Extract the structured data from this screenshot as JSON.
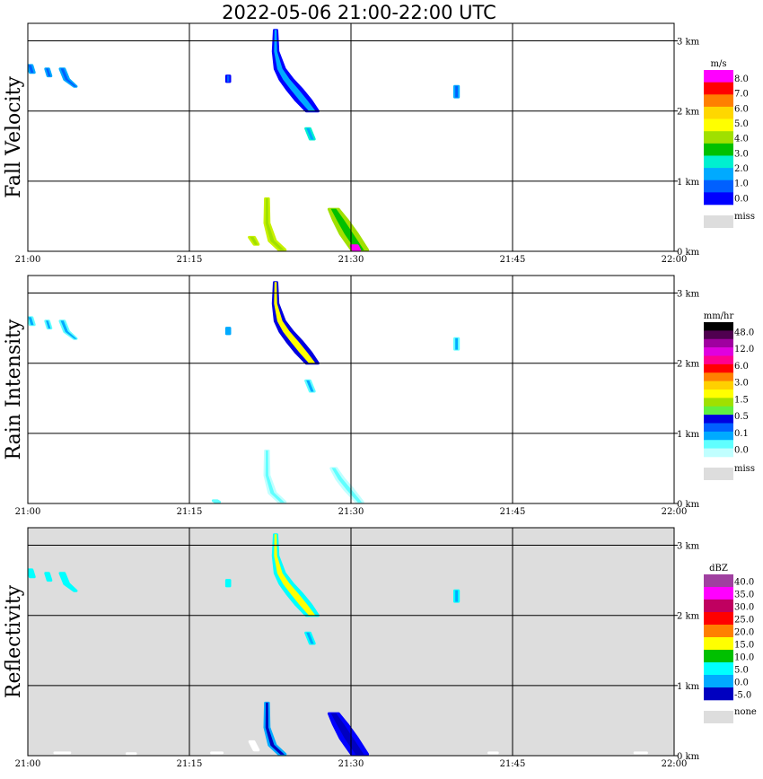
{
  "title": "2022-05-06  21:00-22:00 UTC",
  "chart_data": [
    {
      "type": "heatmap",
      "ylabel": "Fall Velocity",
      "x_ticks": [
        "21:00",
        "21:15",
        "21:30",
        "21:45",
        "22:00"
      ],
      "y_ticks": [
        "0 km",
        "1 km",
        "2 km",
        "3 km"
      ],
      "xlim": [
        0,
        60
      ],
      "ylim": [
        0,
        3.25
      ],
      "background": "#ffffff",
      "legend": {
        "unit": "m/s",
        "labels": [
          "8.0",
          "7.0",
          "6.0",
          "5.0",
          "4.0",
          "3.0",
          "2.0",
          "1.0",
          "0.0"
        ],
        "colors": [
          "#ff00ff",
          "#ff0000",
          "#ff7f00",
          "#ffd700",
          "#ffff00",
          "#a0e000",
          "#00c000",
          "#00f0d0",
          "#00aaff",
          "#0060ff",
          "#0000ff"
        ],
        "miss_label": "miss"
      },
      "echoes": [
        {
          "name": "upper-streak",
          "t": [
            23.0,
            23.0,
            23.4,
            24.0,
            24.8,
            25.6,
            26.4
          ],
          "h": [
            3.15,
            2.85,
            2.6,
            2.45,
            2.3,
            2.15,
            2.0
          ],
          "w": [
            0.25,
            0.45,
            0.9,
            1.2,
            1.4,
            1.4,
            1.1
          ],
          "core": "#00aaff",
          "edge": "#0000ff"
        },
        {
          "name": "upper-fragment",
          "t": [
            26.0,
            26.4
          ],
          "h": [
            1.75,
            1.6
          ],
          "w": [
            0.4,
            0.4
          ],
          "core": "#00aaff",
          "edge": "#00f0d0"
        },
        {
          "name": "left-specks",
          "t": [
            0.2,
            0.4
          ],
          "h": [
            2.65,
            2.55
          ],
          "w": [
            0.4,
            0.4
          ],
          "core": "#0060ff",
          "edge": "#00aaff"
        },
        {
          "name": "left-specks-2",
          "t": [
            1.8,
            2.0
          ],
          "h": [
            2.6,
            2.5
          ],
          "w": [
            0.3,
            0.3
          ],
          "core": "#0060ff",
          "edge": "#00aaff"
        },
        {
          "name": "left-specks-3",
          "t": [
            3.2,
            3.6,
            4.4
          ],
          "h": [
            2.6,
            2.45,
            2.35
          ],
          "w": [
            0.4,
            0.4,
            0.2
          ],
          "core": "#0060ff",
          "edge": "#00aaff"
        },
        {
          "name": "mid-speck",
          "t": [
            18.6,
            18.6
          ],
          "h": [
            2.5,
            2.42
          ],
          "w": [
            0.3,
            0.3
          ],
          "core": "#0060ff",
          "edge": "#0000ff"
        },
        {
          "name": "right-speck",
          "t": [
            39.8,
            39.8
          ],
          "h": [
            2.35,
            2.2
          ],
          "w": [
            0.35,
            0.35
          ],
          "core": "#0060ff",
          "edge": "#00aaff"
        },
        {
          "name": "lower-streak-a",
          "t": [
            22.2,
            22.2,
            22.7,
            23.6
          ],
          "h": [
            0.75,
            0.4,
            0.15,
            0.02
          ],
          "w": [
            0.3,
            0.4,
            0.6,
            0.6
          ],
          "core": "#a0e000",
          "edge": "#c8f000"
        },
        {
          "name": "lower-streak-a2",
          "t": [
            20.8,
            21.2
          ],
          "h": [
            0.2,
            0.1
          ],
          "w": [
            0.5,
            0.4
          ],
          "core": "#a0e000",
          "edge": "#c8f000"
        },
        {
          "name": "lower-streak-b",
          "t": [
            28.4,
            29.0,
            29.8,
            30.8
          ],
          "h": [
            0.6,
            0.45,
            0.25,
            0.02
          ],
          "w": [
            0.9,
            1.3,
            1.6,
            1.5
          ],
          "core": "#00c000",
          "edge": "#a0e000"
        },
        {
          "name": "lower-streak-b2",
          "t": [
            30.3,
            30.5
          ],
          "h": [
            0.08,
            0.02
          ],
          "w": [
            0.6,
            0.6
          ],
          "core": "#ff00ff",
          "edge": "#ff00ff"
        }
      ]
    },
    {
      "type": "heatmap",
      "ylabel": "Rain Intensity",
      "x_ticks": [
        "21:00",
        "21:15",
        "21:30",
        "21:45",
        "22:00"
      ],
      "y_ticks": [
        "0 km",
        "1 km",
        "2 km",
        "3 km"
      ],
      "xlim": [
        0,
        60
      ],
      "ylim": [
        0,
        3.25
      ],
      "background": "#ffffff",
      "legend": {
        "unit": "mm/hr",
        "labels": [
          "48.0",
          "12.0",
          "6.0",
          "3.0",
          "1.5",
          "0.5",
          "0.1",
          "0.0"
        ],
        "colors": [
          "#000000",
          "#500050",
          "#a000a0",
          "#e000e0",
          "#ff0090",
          "#ff0000",
          "#ff8000",
          "#ffd000",
          "#ffff00",
          "#a0e000",
          "#60f040",
          "#0000e0",
          "#0060ff",
          "#00aaff",
          "#60ffff",
          "#c0ffff"
        ],
        "miss_label": "miss"
      },
      "echoes": [
        {
          "name": "upper-streak",
          "t": [
            23.0,
            23.0,
            23.4,
            24.0,
            24.8,
            25.6,
            26.4
          ],
          "h": [
            3.15,
            2.85,
            2.6,
            2.45,
            2.3,
            2.15,
            2.0
          ],
          "w": [
            0.25,
            0.45,
            0.9,
            1.2,
            1.4,
            1.4,
            1.1
          ],
          "core": "#ffff00",
          "edge": "#0000e0"
        },
        {
          "name": "upper-fragment",
          "t": [
            26.0,
            26.4
          ],
          "h": [
            1.75,
            1.6
          ],
          "w": [
            0.4,
            0.4
          ],
          "core": "#00aaff",
          "edge": "#60ffff"
        },
        {
          "name": "left-specks",
          "t": [
            0.2,
            0.4
          ],
          "h": [
            2.65,
            2.55
          ],
          "w": [
            0.4,
            0.4
          ],
          "core": "#00aaff",
          "edge": "#60ffff"
        },
        {
          "name": "left-specks-2",
          "t": [
            1.8,
            2.0
          ],
          "h": [
            2.6,
            2.5
          ],
          "w": [
            0.3,
            0.3
          ],
          "core": "#00aaff",
          "edge": "#60ffff"
        },
        {
          "name": "left-specks-3",
          "t": [
            3.2,
            3.6,
            4.4
          ],
          "h": [
            2.6,
            2.45,
            2.35
          ],
          "w": [
            0.4,
            0.4,
            0.2
          ],
          "core": "#00aaff",
          "edge": "#60ffff"
        },
        {
          "name": "mid-speck",
          "t": [
            18.6,
            18.6
          ],
          "h": [
            2.5,
            2.42
          ],
          "w": [
            0.3,
            0.3
          ],
          "core": "#00aaff",
          "edge": "#00aaff"
        },
        {
          "name": "right-speck",
          "t": [
            39.8,
            39.8
          ],
          "h": [
            2.35,
            2.2
          ],
          "w": [
            0.35,
            0.35
          ],
          "core": "#00aaff",
          "edge": "#60ffff"
        },
        {
          "name": "lower-streak-a",
          "t": [
            22.2,
            22.2,
            22.7,
            23.6
          ],
          "h": [
            0.75,
            0.4,
            0.15,
            0.02
          ],
          "w": [
            0.3,
            0.4,
            0.6,
            0.6
          ],
          "core": "#60ffff",
          "edge": "#c0ffff"
        },
        {
          "name": "lower-streak-b",
          "t": [
            28.4,
            29.0,
            29.8,
            30.8
          ],
          "h": [
            0.5,
            0.35,
            0.2,
            0.02
          ],
          "w": [
            0.5,
            0.7,
            0.8,
            0.6
          ],
          "core": "#60ffff",
          "edge": "#c0ffff"
        },
        {
          "name": "lower-dots",
          "t": [
            17.4,
            17.6
          ],
          "h": [
            0.04,
            0.02
          ],
          "w": [
            0.4,
            0.4
          ],
          "core": "#60ffff",
          "edge": "#60ffff"
        }
      ]
    },
    {
      "type": "heatmap",
      "ylabel": "Reflectivity",
      "x_ticks": [
        "21:00",
        "21:15",
        "21:30",
        "21:45",
        "22:00"
      ],
      "y_ticks": [
        "0 km",
        "1 km",
        "2 km",
        "3 km"
      ],
      "xlim": [
        0,
        60
      ],
      "ylim": [
        0,
        3.25
      ],
      "background": "#dddddd",
      "legend": {
        "unit": "dBZ",
        "labels": [
          "40.0",
          "35.0",
          "30.0",
          "25.0",
          "20.0",
          "15.0",
          "10.0",
          "5.0",
          "0.0",
          "-5.0"
        ],
        "colors": [
          "#a040a0",
          "#ff00ff",
          "#c00060",
          "#ff0000",
          "#ff7f00",
          "#ffff00",
          "#00c000",
          "#00ffff",
          "#00aaff",
          "#0000c0"
        ],
        "miss_label": "none"
      },
      "echoes": [
        {
          "name": "upper-streak",
          "t": [
            23.0,
            23.0,
            23.4,
            24.0,
            24.8,
            25.6,
            26.4
          ],
          "h": [
            3.15,
            2.85,
            2.6,
            2.45,
            2.3,
            2.15,
            2.0
          ],
          "w": [
            0.25,
            0.45,
            0.9,
            1.2,
            1.4,
            1.4,
            1.1
          ],
          "core": "#ffff00",
          "edge": "#00ffff"
        },
        {
          "name": "upper-fragment",
          "t": [
            26.0,
            26.4
          ],
          "h": [
            1.75,
            1.6
          ],
          "w": [
            0.4,
            0.4
          ],
          "core": "#00aaff",
          "edge": "#00ffff"
        },
        {
          "name": "left-specks",
          "t": [
            0.2,
            0.4
          ],
          "h": [
            2.65,
            2.55
          ],
          "w": [
            0.4,
            0.4
          ],
          "core": "#00ffff",
          "edge": "#00ffff"
        },
        {
          "name": "left-specks-2",
          "t": [
            1.8,
            2.0
          ],
          "h": [
            2.6,
            2.5
          ],
          "w": [
            0.3,
            0.3
          ],
          "core": "#00ffff",
          "edge": "#00ffff"
        },
        {
          "name": "left-specks-3",
          "t": [
            3.2,
            3.6,
            4.4
          ],
          "h": [
            2.6,
            2.45,
            2.35
          ],
          "w": [
            0.4,
            0.4,
            0.2
          ],
          "core": "#00ffff",
          "edge": "#00ffff"
        },
        {
          "name": "mid-speck",
          "t": [
            18.6,
            18.6
          ],
          "h": [
            2.5,
            2.42
          ],
          "w": [
            0.3,
            0.3
          ],
          "core": "#00ffff",
          "edge": "#00ffff"
        },
        {
          "name": "right-speck",
          "t": [
            39.8,
            39.8
          ],
          "h": [
            2.35,
            2.2
          ],
          "w": [
            0.35,
            0.35
          ],
          "core": "#00aaff",
          "edge": "#00ffff"
        },
        {
          "name": "lower-streak-a",
          "t": [
            22.2,
            22.2,
            22.7,
            23.6
          ],
          "h": [
            0.75,
            0.4,
            0.15,
            0.02
          ],
          "w": [
            0.3,
            0.4,
            0.6,
            0.6
          ],
          "core": "#0000c0",
          "edge": "#00aaff"
        },
        {
          "name": "lower-streak-b",
          "t": [
            28.4,
            29.0,
            29.8,
            30.8
          ],
          "h": [
            0.6,
            0.45,
            0.25,
            0.02
          ],
          "w": [
            0.9,
            1.3,
            1.6,
            1.5
          ],
          "core": "#0000c0",
          "edge": "#0000ff"
        },
        {
          "name": "lower-white-1",
          "t": [
            2.8,
            3.6
          ],
          "h": [
            0.04,
            0.04
          ],
          "w": [
            0.6,
            0.6
          ],
          "core": "#ffffff",
          "edge": "#ffffff"
        },
        {
          "name": "lower-white-2",
          "t": [
            9.4,
            9.8
          ],
          "h": [
            0.03,
            0.03
          ],
          "w": [
            0.4,
            0.4
          ],
          "core": "#ffffff",
          "edge": "#ffffff"
        },
        {
          "name": "lower-white-3",
          "t": [
            17.3,
            17.8
          ],
          "h": [
            0.04,
            0.04
          ],
          "w": [
            0.5,
            0.5
          ],
          "core": "#ffffff",
          "edge": "#ffffff"
        },
        {
          "name": "lower-white-4",
          "t": [
            20.8,
            21.2
          ],
          "h": [
            0.2,
            0.08
          ],
          "w": [
            0.4,
            0.4
          ],
          "core": "#ffffff",
          "edge": "#ffffff"
        },
        {
          "name": "lower-white-5",
          "t": [
            43.0,
            43.4
          ],
          "h": [
            0.04,
            0.04
          ],
          "w": [
            0.4,
            0.4
          ],
          "core": "#ffffff",
          "edge": "#ffffff"
        },
        {
          "name": "lower-white-6",
          "t": [
            56.6,
            57.2
          ],
          "h": [
            0.04,
            0.04
          ],
          "w": [
            0.5,
            0.5
          ],
          "core": "#ffffff",
          "edge": "#ffffff"
        }
      ]
    }
  ]
}
